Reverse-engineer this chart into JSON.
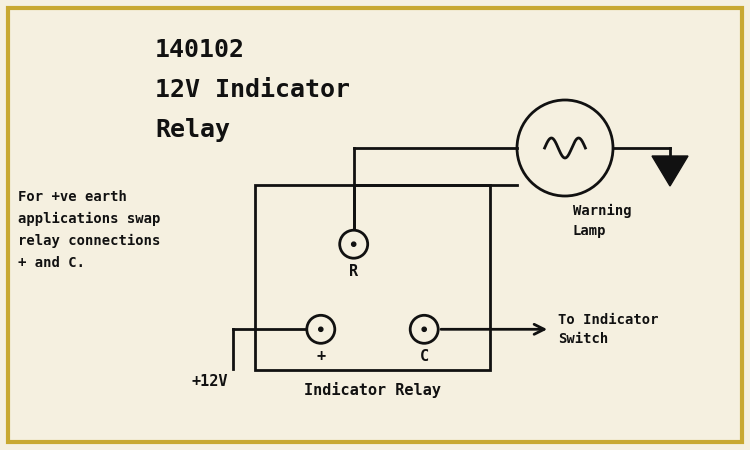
{
  "title_lines": [
    "140102",
    "12V Indicator",
    "Relay"
  ],
  "bg_color": "#f5f0e0",
  "border_color": "#c8a830",
  "line_color": "#111111",
  "text_color": "#111111",
  "note_text": "For +ve earth\napplications swap\nrelay connections\n+ and C.",
  "relay_label": "Indicator Relay",
  "warning_lamp_label": "Warning\nLamp",
  "to_indicator_label": "To Indicator\nSwitch",
  "plus12v_label": "+12V",
  "pin_r_label": "R",
  "pin_plus_label": "+",
  "pin_c_label": "C"
}
